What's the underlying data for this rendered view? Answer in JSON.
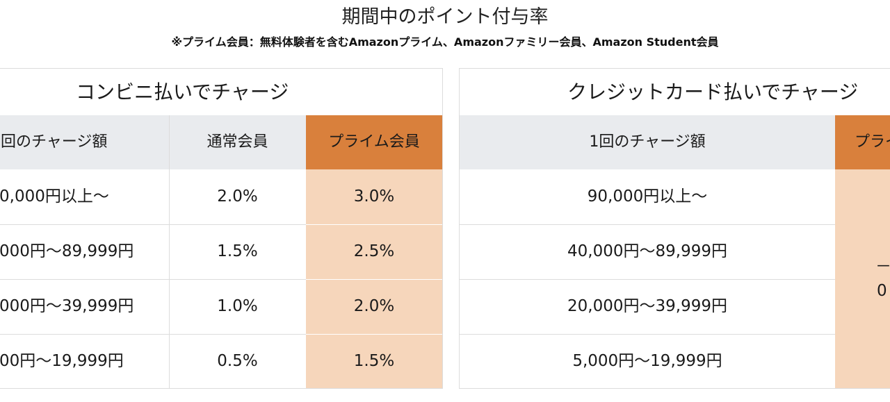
{
  "title": "期間中のポイント付与率",
  "subtitle": "※プライム会員：無料体験者を含むAmazonプライム、Amazonファミリー会員、Amazon Student会員",
  "left_table": {
    "title": "コンビニ払いでチャージ",
    "headers": {
      "amount": "回のチャージ額",
      "regular": "通常会員",
      "prime": "プライム会員"
    },
    "rows": [
      {
        "amount": "0,000円以上～",
        "regular": "2.0%",
        "prime": "3.0%"
      },
      {
        "amount": "000円～89,999円",
        "regular": "1.5%",
        "prime": "2.5%"
      },
      {
        "amount": "000円～39,999円",
        "regular": "1.0%",
        "prime": "2.0%"
      },
      {
        "amount": "00円～19,999円",
        "regular": "0.5%",
        "prime": "1.5%"
      }
    ]
  },
  "right_table": {
    "title": "クレジットカード払いでチャージ",
    "headers": {
      "amount": "1回のチャージ額",
      "prime": "プライ"
    },
    "rows": [
      {
        "amount": "90,000円以上～"
      },
      {
        "amount": "40,000円～89,999円"
      },
      {
        "amount": "20,000円～39,999円"
      },
      {
        "amount": "5,000円～19,999円"
      }
    ],
    "prime_merged": {
      "line1": "－",
      "line2": "0"
    }
  }
}
